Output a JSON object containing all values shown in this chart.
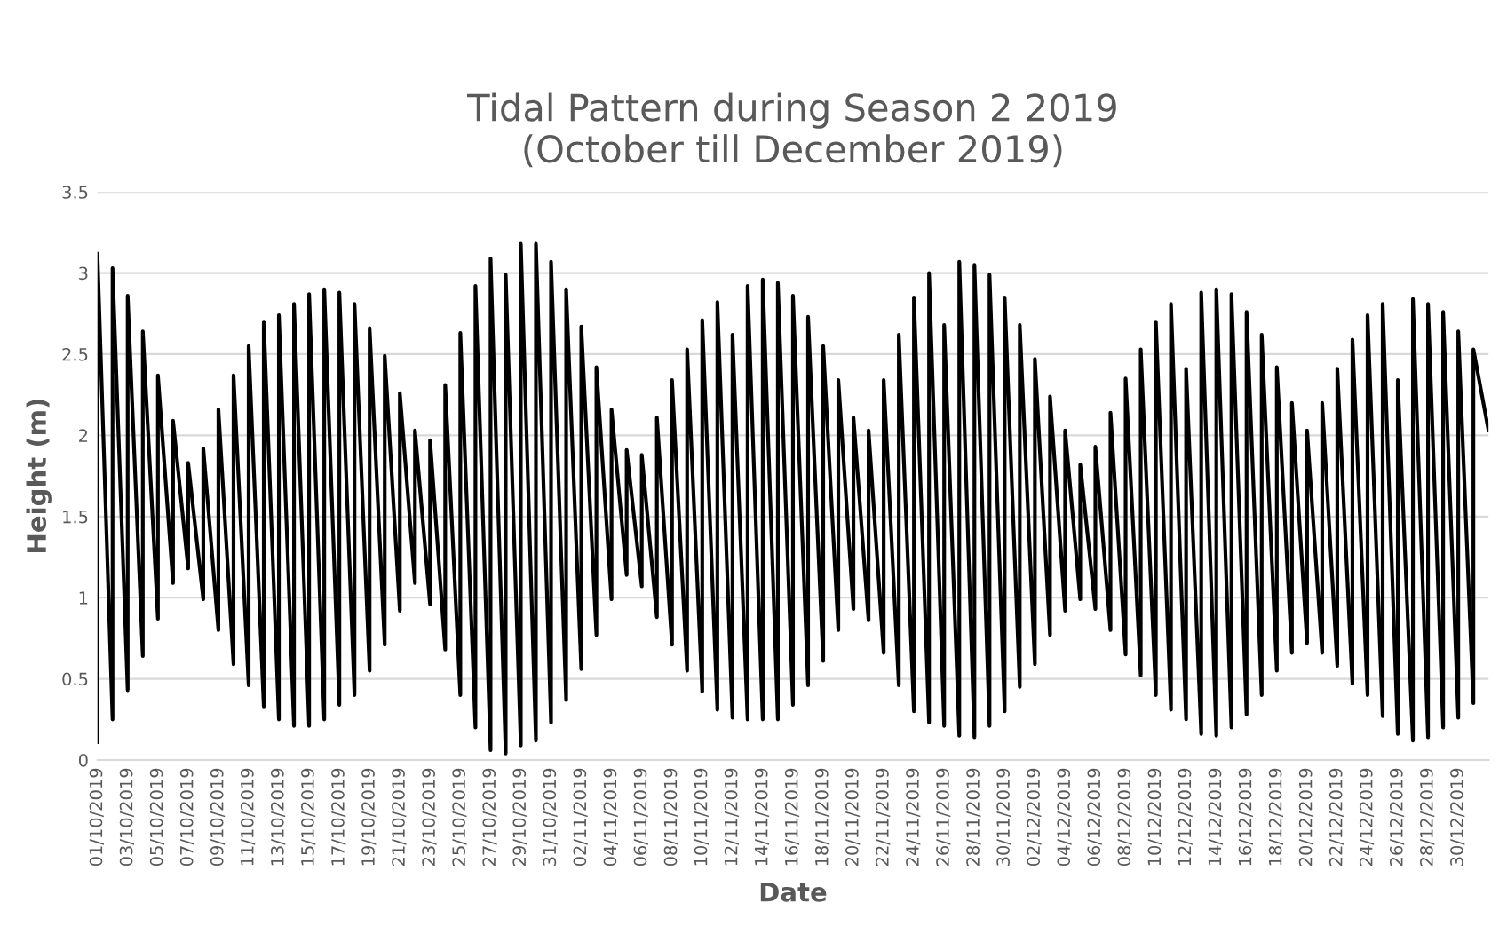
{
  "chart_data": {
    "type": "line",
    "title": "Tidal Pattern during Season 2 2019\n(October till December 2019)",
    "xlabel": "Date",
    "ylabel": "Height (m)",
    "series": [
      {
        "color": "#000000",
        "x": [
          "2019-10-01",
          "2019-10-01",
          "2019-10-02",
          "2019-10-02",
          "2019-10-03",
          "2019-10-03",
          "2019-10-04",
          "2019-10-04",
          "2019-10-05",
          "2019-10-05",
          "2019-10-06",
          "2019-10-06",
          "2019-10-07",
          "2019-10-07",
          "2019-10-08",
          "2019-10-08",
          "2019-10-09",
          "2019-10-09",
          "2019-10-10",
          "2019-10-10",
          "2019-10-11",
          "2019-10-11",
          "2019-10-12",
          "2019-10-12",
          "2019-10-13",
          "2019-10-13",
          "2019-10-14",
          "2019-10-14",
          "2019-10-15",
          "2019-10-15",
          "2019-10-16",
          "2019-10-16",
          "2019-10-17",
          "2019-10-17",
          "2019-10-18",
          "2019-10-18",
          "2019-10-19",
          "2019-10-19",
          "2019-10-20",
          "2019-10-20",
          "2019-10-21",
          "2019-10-21",
          "2019-10-22",
          "2019-10-22",
          "2019-10-23",
          "2019-10-23",
          "2019-10-24",
          "2019-10-24",
          "2019-10-25",
          "2019-10-25",
          "2019-10-26",
          "2019-10-26",
          "2019-10-27",
          "2019-10-27",
          "2019-10-28",
          "2019-10-28",
          "2019-10-29",
          "2019-10-29",
          "2019-10-30",
          "2019-10-30",
          "2019-10-31",
          "2019-10-31",
          "2019-11-01",
          "2019-11-01",
          "2019-11-02",
          "2019-11-02",
          "2019-11-03",
          "2019-11-03",
          "2019-11-04",
          "2019-11-04",
          "2019-11-05",
          "2019-11-05",
          "2019-11-06",
          "2019-11-06",
          "2019-11-07",
          "2019-11-07",
          "2019-11-08",
          "2019-11-08",
          "2019-11-09",
          "2019-11-09",
          "2019-11-10",
          "2019-11-10",
          "2019-11-11",
          "2019-11-11",
          "2019-11-12",
          "2019-11-12",
          "2019-11-13",
          "2019-11-13",
          "2019-11-14",
          "2019-11-14",
          "2019-11-15",
          "2019-11-15",
          "2019-11-16",
          "2019-11-16",
          "2019-11-17",
          "2019-11-17",
          "2019-11-18",
          "2019-11-18",
          "2019-11-19",
          "2019-11-19",
          "2019-11-20",
          "2019-11-20",
          "2019-11-21",
          "2019-11-21",
          "2019-11-22",
          "2019-11-22",
          "2019-11-23",
          "2019-11-23",
          "2019-11-24",
          "2019-11-24",
          "2019-11-25",
          "2019-11-25",
          "2019-11-26",
          "2019-11-26",
          "2019-11-27",
          "2019-11-27",
          "2019-11-28",
          "2019-11-28",
          "2019-11-29",
          "2019-11-29",
          "2019-11-30",
          "2019-11-30",
          "2019-12-01",
          "2019-12-01",
          "2019-12-02",
          "2019-12-02",
          "2019-12-03",
          "2019-12-03",
          "2019-12-04",
          "2019-12-04",
          "2019-12-05",
          "2019-12-05",
          "2019-12-06",
          "2019-12-06",
          "2019-12-07",
          "2019-12-07",
          "2019-12-08",
          "2019-12-08",
          "2019-12-09",
          "2019-12-09",
          "2019-12-10",
          "2019-12-10",
          "2019-12-11",
          "2019-12-11",
          "2019-12-12",
          "2019-12-12",
          "2019-12-13",
          "2019-12-13",
          "2019-12-14",
          "2019-12-14",
          "2019-12-15",
          "2019-12-15",
          "2019-12-16",
          "2019-12-16",
          "2019-12-17",
          "2019-12-17",
          "2019-12-18",
          "2019-12-18",
          "2019-12-19",
          "2019-12-19",
          "2019-12-20",
          "2019-12-20",
          "2019-12-21",
          "2019-12-21",
          "2019-12-22",
          "2019-12-22",
          "2019-12-23",
          "2019-12-23",
          "2019-12-24",
          "2019-12-24",
          "2019-12-25",
          "2019-12-25",
          "2019-12-26",
          "2019-12-26",
          "2019-12-27",
          "2019-12-27",
          "2019-12-28",
          "2019-12-28",
          "2019-12-29",
          "2019-12-29",
          "2019-12-30",
          "2019-12-30",
          "2019-12-31",
          "2019-12-31",
          "2020-01-01"
        ],
        "values": [
          0.11,
          3.12,
          0.25,
          3.03,
          0.43,
          2.86,
          0.64,
          2.64,
          0.87,
          2.37,
          1.09,
          2.09,
          1.18,
          1.83,
          0.99,
          1.92,
          0.8,
          2.16,
          0.59,
          2.37,
          0.46,
          2.55,
          0.33,
          2.7,
          0.25,
          2.74,
          0.21,
          2.81,
          0.21,
          2.87,
          0.25,
          2.9,
          0.34,
          2.88,
          0.4,
          2.81,
          0.55,
          2.66,
          0.71,
          2.49,
          0.92,
          2.26,
          1.09,
          2.03,
          0.96,
          1.97,
          0.68,
          2.31,
          0.4,
          2.63,
          0.2,
          2.92,
          0.06,
          3.09,
          0.04,
          2.99,
          0.09,
          3.18,
          0.12,
          3.18,
          0.23,
          3.07,
          0.37,
          2.9,
          0.56,
          2.67,
          0.77,
          2.42,
          0.99,
          2.16,
          1.14,
          1.91,
          1.07,
          1.88,
          0.88,
          2.11,
          0.71,
          2.34,
          0.55,
          2.53,
          0.42,
          2.71,
          0.31,
          2.82,
          0.26,
          2.62,
          0.25,
          2.92,
          0.25,
          2.96,
          0.25,
          2.94,
          0.34,
          2.86,
          0.46,
          2.73,
          0.61,
          2.55,
          0.8,
          2.34,
          0.93,
          2.11,
          0.86,
          2.03,
          0.66,
          2.34,
          0.46,
          2.62,
          0.3,
          2.85,
          0.23,
          3.0,
          0.21,
          2.68,
          0.15,
          3.07,
          0.14,
          3.05,
          0.21,
          2.99,
          0.3,
          2.85,
          0.45,
          2.68,
          0.59,
          2.47,
          0.77,
          2.24,
          0.92,
          2.03,
          0.99,
          1.82,
          0.93,
          1.93,
          0.8,
          2.14,
          0.65,
          2.35,
          0.52,
          2.53,
          0.4,
          2.7,
          0.31,
          2.81,
          0.25,
          2.41,
          0.16,
          2.88,
          0.15,
          2.9,
          0.2,
          2.87,
          0.28,
          2.76,
          0.4,
          2.62,
          0.55,
          2.42,
          0.66,
          2.2,
          0.72,
          2.03,
          0.66,
          2.2,
          0.58,
          2.41,
          0.47,
          2.59,
          0.4,
          2.74,
          0.27,
          2.81,
          0.16,
          2.34,
          0.12,
          2.84,
          0.14,
          2.81,
          0.2,
          2.76,
          0.26,
          2.64,
          0.35,
          2.53,
          2.03
        ]
      }
    ],
    "xlim": [
      "2019-10-01",
      "2020-01-01"
    ],
    "xticks": [
      {
        "value": "2019-10-01",
        "label": "01/10/2019"
      },
      {
        "value": "2019-10-03",
        "label": "03/10/2019"
      },
      {
        "value": "2019-10-05",
        "label": "05/10/2019"
      },
      {
        "value": "2019-10-07",
        "label": "07/10/2019"
      },
      {
        "value": "2019-10-09",
        "label": "09/10/2019"
      },
      {
        "value": "2019-10-11",
        "label": "11/10/2019"
      },
      {
        "value": "2019-10-13",
        "label": "13/10/2019"
      },
      {
        "value": "2019-10-15",
        "label": "15/10/2019"
      },
      {
        "value": "2019-10-17",
        "label": "17/10/2019"
      },
      {
        "value": "2019-10-19",
        "label": "19/10/2019"
      },
      {
        "value": "2019-10-21",
        "label": "21/10/2019"
      },
      {
        "value": "2019-10-23",
        "label": "23/10/2019"
      },
      {
        "value": "2019-10-25",
        "label": "25/10/2019"
      },
      {
        "value": "2019-10-27",
        "label": "27/10/2019"
      },
      {
        "value": "2019-10-29",
        "label": "29/10/2019"
      },
      {
        "value": "2019-10-31",
        "label": "31/10/2019"
      },
      {
        "value": "2019-11-02",
        "label": "02/11/2019"
      },
      {
        "value": "2019-11-04",
        "label": "04/11/2019"
      },
      {
        "value": "2019-11-06",
        "label": "06/11/2019"
      },
      {
        "value": "2019-11-08",
        "label": "08/11/2019"
      },
      {
        "value": "2019-11-10",
        "label": "10/11/2019"
      },
      {
        "value": "2019-11-12",
        "label": "12/11/2019"
      },
      {
        "value": "2019-11-14",
        "label": "14/11/2019"
      },
      {
        "value": "2019-11-16",
        "label": "16/11/2019"
      },
      {
        "value": "2019-11-18",
        "label": "18/11/2019"
      },
      {
        "value": "2019-11-20",
        "label": "20/11/2019"
      },
      {
        "value": "2019-11-22",
        "label": "22/11/2019"
      },
      {
        "value": "2019-11-24",
        "label": "24/11/2019"
      },
      {
        "value": "2019-11-26",
        "label": "26/11/2019"
      },
      {
        "value": "2019-11-28",
        "label": "28/11/2019"
      },
      {
        "value": "2019-11-30",
        "label": "30/11/2019"
      },
      {
        "value": "2019-12-02",
        "label": "02/12/2019"
      },
      {
        "value": "2019-12-04",
        "label": "04/12/2019"
      },
      {
        "value": "2019-12-06",
        "label": "06/12/2019"
      },
      {
        "value": "2019-12-08",
        "label": "08/12/2019"
      },
      {
        "value": "2019-12-10",
        "label": "10/12/2019"
      },
      {
        "value": "2019-12-12",
        "label": "12/12/2019"
      },
      {
        "value": "2019-12-14",
        "label": "14/12/2019"
      },
      {
        "value": "2019-12-16",
        "label": "16/12/2019"
      },
      {
        "value": "2019-12-18",
        "label": "18/12/2019"
      },
      {
        "value": "2019-12-20",
        "label": "20/12/2019"
      },
      {
        "value": "2019-12-22",
        "label": "22/12/2019"
      },
      {
        "value": "2019-12-24",
        "label": "24/12/2019"
      },
      {
        "value": "2019-12-26",
        "label": "26/12/2019"
      },
      {
        "value": "2019-12-28",
        "label": "28/12/2019"
      },
      {
        "value": "2019-12-30",
        "label": "30/12/2019"
      }
    ],
    "ylim": [
      0,
      3.5
    ],
    "yticks": [
      0,
      0.5,
      1,
      1.5,
      2,
      2.5,
      3,
      3.5
    ],
    "grid": "y",
    "marker": "none",
    "line_style": "solid"
  }
}
